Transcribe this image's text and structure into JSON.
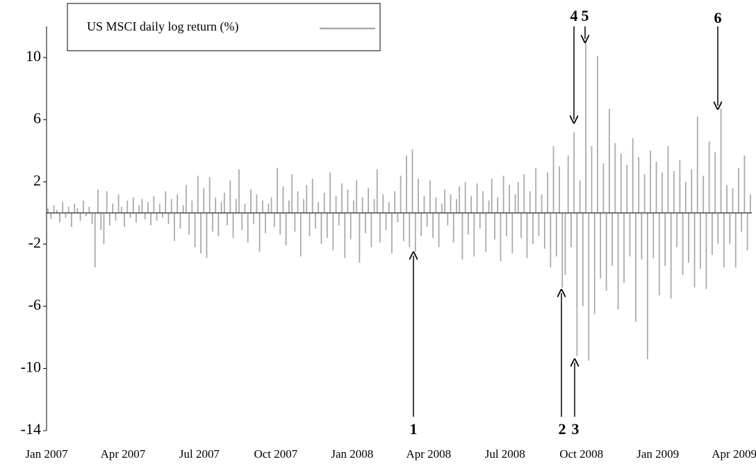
{
  "chart_data": {
    "type": "bar",
    "legend_label": "US MSCI daily log return (%)",
    "color": "#aaaaaa",
    "annotations": [
      "1",
      "2",
      "3",
      "4",
      "5",
      "6"
    ],
    "xlim": [
      0,
      240
    ],
    "xticks": [
      {
        "value": 0,
        "label": "Jan 2007"
      },
      {
        "value": 26,
        "label": "Apr 2007"
      },
      {
        "value": 52,
        "label": "Jul 2007"
      },
      {
        "value": 78,
        "label": "Oct 2007"
      },
      {
        "value": 104,
        "label": "Jan 2008"
      },
      {
        "value": 130,
        "label": "Apr 2008"
      },
      {
        "value": 156,
        "label": "Jul 2008"
      },
      {
        "value": 182,
        "label": "Oct 2008"
      },
      {
        "value": 208,
        "label": "Jan 2009"
      },
      {
        "value": 234,
        "label": "Apr 2009"
      }
    ],
    "ylim": [
      -14,
      12
    ],
    "yticks": [
      10,
      6,
      2,
      -2,
      -6,
      -10,
      -14
    ],
    "values": [
      0.3,
      -0.4,
      0.5,
      0.2,
      -0.6,
      0.7,
      -0.3,
      0.4,
      -0.9,
      0.6,
      0.3,
      -0.5,
      0.8,
      -0.2,
      0.4,
      -0.7,
      -3.5,
      1.5,
      -1.1,
      -2.0,
      1.4,
      -0.8,
      0.6,
      -0.5,
      1.2,
      0.4,
      -0.9,
      0.8,
      -0.3,
      1.0,
      -0.6,
      0.5,
      0.9,
      -0.4,
      0.7,
      -0.8,
      1.1,
      -0.5,
      0.6,
      -0.3,
      1.4,
      -0.7,
      0.9,
      -1.8,
      1.2,
      -1.0,
      0.5,
      1.8,
      -1.4,
      0.8,
      -2.2,
      2.4,
      -2.6,
      1.6,
      -2.9,
      2.3,
      -1.2,
      1.0,
      -1.5,
      0.7,
      1.3,
      -0.8,
      2.1,
      -1.6,
      0.9,
      2.8,
      -1.1,
      0.6,
      -1.9,
      1.5,
      -0.7,
      1.2,
      -2.5,
      0.8,
      -1.3,
      0.6,
      1.0,
      -0.9,
      2.9,
      -1.4,
      1.7,
      -2.1,
      0.8,
      2.5,
      -1.2,
      1.4,
      -2.8,
      0.9,
      1.8,
      -1.5,
      2.2,
      -1.0,
      0.7,
      -2.0,
      1.3,
      -1.6,
      2.6,
      -2.4,
      1.1,
      -0.8,
      1.9,
      -2.9,
      1.5,
      -1.7,
      0.8,
      2.1,
      -3.2,
      1.0,
      -1.3,
      1.6,
      -2.2,
      0.9,
      2.8,
      -1.9,
      1.2,
      -1.1,
      0.7,
      -2.6,
      1.4,
      -0.6,
      2.4,
      -1.8,
      3.7,
      -2.2,
      4.1,
      -2.5,
      2.2,
      -1.5,
      1.1,
      -0.9,
      2.1,
      -1.6,
      1.0,
      -2.2,
      0.6,
      1.5,
      -0.8,
      1.2,
      -1.9,
      0.9,
      1.7,
      -3.0,
      2.0,
      -1.4,
      1.1,
      -2.8,
      1.9,
      -1.0,
      1.4,
      -2.5,
      0.8,
      2.2,
      -1.7,
      1.0,
      -3.1,
      2.4,
      -1.5,
      1.8,
      -2.6,
      1.2,
      2.0,
      -1.6,
      2.5,
      -2.9,
      1.4,
      -2.0,
      2.9,
      -1.5,
      1.2,
      -2.3,
      2.6,
      -3.5,
      4.3,
      -2.8,
      3.0,
      -4.8,
      -4.0,
      3.7,
      -2.2,
      5.2,
      -9.2,
      2.1,
      -6.0,
      11.0,
      -9.5,
      4.3,
      -6.5,
      10.1,
      -4.2,
      3.2,
      -5.0,
      6.7,
      -3.4,
      4.5,
      -6.2,
      3.8,
      -4.5,
      3.1,
      -2.8,
      4.8,
      -7.0,
      3.6,
      -3.0,
      2.5,
      -9.4,
      4.0,
      -2.9,
      3.3,
      -5.3,
      2.6,
      -3.4,
      4.3,
      -5.5,
      2.7,
      -2.2,
      3.4,
      -4.0,
      2.0,
      -3.2,
      2.8,
      -4.8,
      6.2,
      -3.6,
      2.4,
      -4.9,
      4.6,
      -2.7,
      3.9,
      -2.0,
      6.7,
      -3.5,
      1.8,
      -2.0,
      1.6,
      -3.5,
      2.9,
      -1.2,
      3.7,
      -2.4,
      1.2
    ]
  }
}
